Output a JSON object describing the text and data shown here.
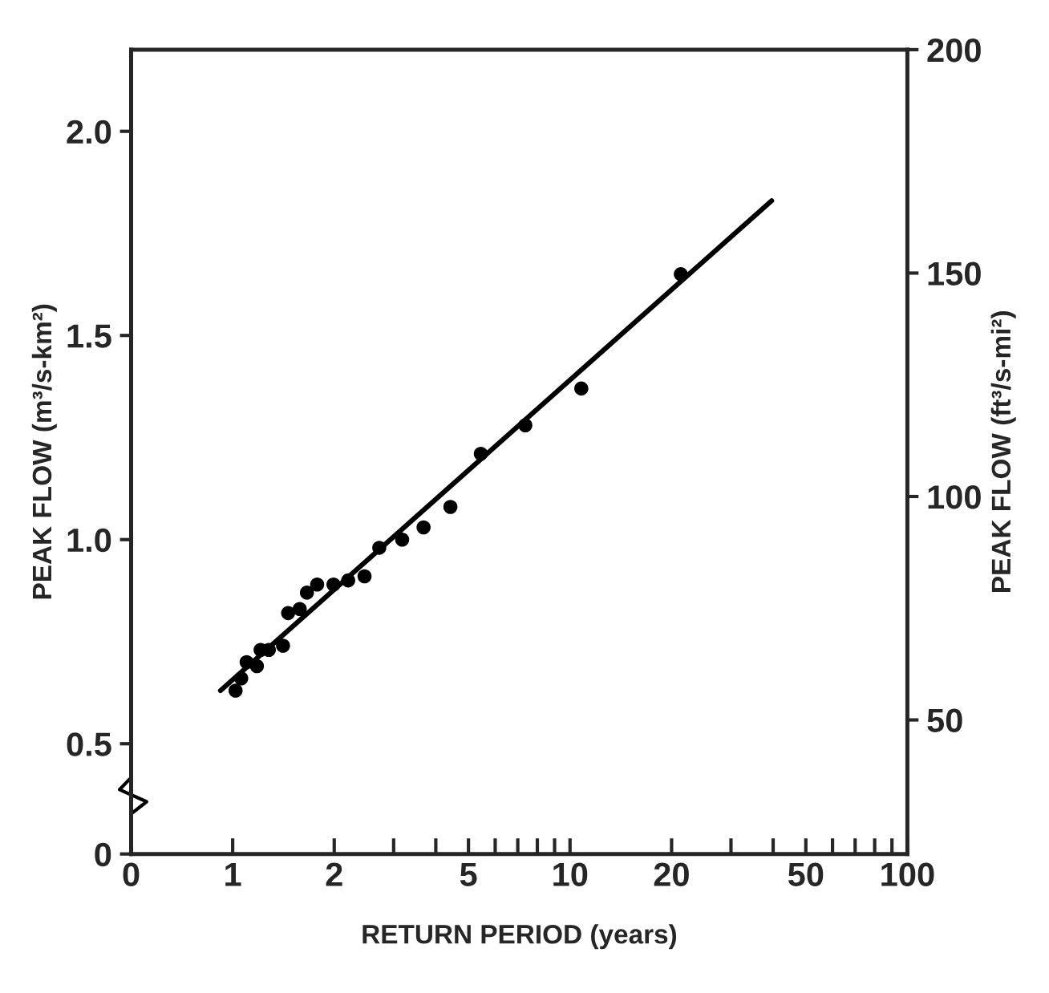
{
  "chart_data": {
    "type": "scatter",
    "xlabel": "RETURN PERIOD (years)",
    "ylabel": "PEAK FLOW (m³/s-km²)",
    "y2label": "PEAK FLOW (ft³/s-mi²)",
    "log": "x",
    "grid": false,
    "legend": false,
    "series": [
      {
        "marker": "circle",
        "color": "#000000",
        "x": [
          1.02,
          1.06,
          1.1,
          1.18,
          1.21,
          1.28,
          1.41,
          1.46,
          1.58,
          1.66,
          1.78,
          1.99,
          2.2,
          2.46,
          2.72,
          3.18,
          3.68,
          4.42,
          5.44,
          7.37,
          10.8,
          21.3
        ],
        "values": [
          0.63,
          0.66,
          0.7,
          0.69,
          0.73,
          0.73,
          0.74,
          0.82,
          0.83,
          0.87,
          0.89,
          0.89,
          0.9,
          0.91,
          0.98,
          1.0,
          1.03,
          1.08,
          1.21,
          1.28,
          1.37,
          1.65
        ]
      },
      {
        "type": "line",
        "marker": "none",
        "color": "#000000",
        "x": [
          0.92,
          39.6
        ],
        "values": [
          0.63,
          1.83
        ]
      }
    ],
    "xlim": [
      0.5,
      100
    ],
    "xticks": [
      {
        "value": 0.5,
        "label": "0"
      },
      1,
      2,
      {
        "value": 3,
        "label": null
      },
      {
        "value": 4,
        "label": null
      },
      5,
      {
        "value": 6,
        "label": null
      },
      {
        "value": 7,
        "label": null
      },
      {
        "value": 8,
        "label": null
      },
      {
        "value": 9,
        "label": null
      },
      10,
      20,
      {
        "value": 30,
        "label": null
      },
      {
        "value": 40,
        "label": null
      },
      50,
      {
        "value": 60,
        "label": null
      },
      {
        "value": 70,
        "label": null
      },
      {
        "value": 80,
        "label": null
      },
      {
        "value": 90,
        "label": null
      },
      100
    ],
    "ylim": [
      0.23,
      2.2
    ],
    "yticks": [
      {
        "value": 0.23,
        "label": "0"
      },
      {
        "value": 0.5,
        "label": "0.5"
      },
      {
        "value": 1.0,
        "label": "1.0"
      },
      {
        "value": 1.5,
        "label": "1.5"
      },
      {
        "value": 2.0,
        "label": "2.0"
      }
    ],
    "y2lim": [
      20,
      200
    ],
    "y2ticks": [
      50,
      100,
      150,
      200
    ]
  }
}
